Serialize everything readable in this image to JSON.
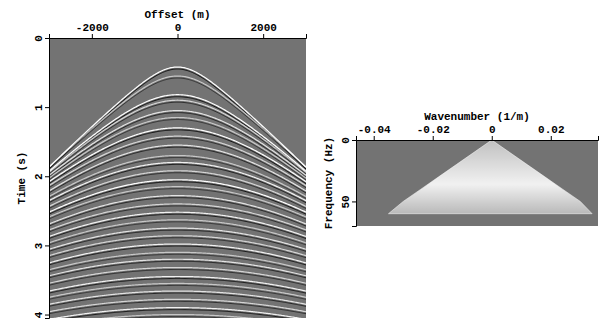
{
  "chart_data": [
    {
      "type": "seismic",
      "xlabel": "Offset (m)",
      "ylabel": "Time (s)",
      "xlim": [
        -3000,
        3000
      ],
      "ylim": [
        0,
        4.05
      ],
      "xticks": [
        -2000,
        0,
        2000
      ],
      "yticks": [
        0,
        1,
        2,
        3,
        4
      ],
      "color": "#ffffff",
      "events": [
        {
          "t0": 0.42,
          "velocity": 1650,
          "amplitude": 1
        },
        {
          "t0": 0.55,
          "velocity": 1680,
          "amplitude": 0.6
        },
        {
          "t0": 0.82,
          "velocity": 1720,
          "amplitude": 1
        },
        {
          "t0": 0.9,
          "velocity": 1740,
          "amplitude": 0.7
        },
        {
          "t0": 1.05,
          "velocity": 1780,
          "amplitude": 0.8
        },
        {
          "t0": 1.15,
          "velocity": 1800,
          "amplitude": 0.6
        },
        {
          "t0": 1.3,
          "velocity": 1850,
          "amplitude": 1
        },
        {
          "t0": 1.42,
          "velocity": 1880,
          "amplitude": 0.7
        },
        {
          "t0": 1.55,
          "velocity": 1900,
          "amplitude": 0.8
        },
        {
          "t0": 1.7,
          "velocity": 1950,
          "amplitude": 0.6
        },
        {
          "t0": 1.8,
          "velocity": 1980,
          "amplitude": 0.9
        },
        {
          "t0": 1.92,
          "velocity": 2000,
          "amplitude": 0.7
        },
        {
          "t0": 2.05,
          "velocity": 2050,
          "amplitude": 1
        },
        {
          "t0": 2.15,
          "velocity": 2080,
          "amplitude": 0.6
        },
        {
          "t0": 2.28,
          "velocity": 2100,
          "amplitude": 0.8
        },
        {
          "t0": 2.4,
          "velocity": 2150,
          "amplitude": 0.7
        },
        {
          "t0": 2.52,
          "velocity": 2180,
          "amplitude": 0.9
        },
        {
          "t0": 2.63,
          "velocity": 2200,
          "amplitude": 0.6
        },
        {
          "t0": 2.75,
          "velocity": 2250,
          "amplitude": 0.8
        },
        {
          "t0": 2.86,
          "velocity": 2280,
          "amplitude": 0.7
        },
        {
          "t0": 2.98,
          "velocity": 2300,
          "amplitude": 0.9
        },
        {
          "t0": 3.1,
          "velocity": 2350,
          "amplitude": 0.6
        },
        {
          "t0": 3.2,
          "velocity": 2380,
          "amplitude": 0.8
        },
        {
          "t0": 3.32,
          "velocity": 2400,
          "amplitude": 0.7
        },
        {
          "t0": 3.45,
          "velocity": 2450,
          "amplitude": 0.9
        },
        {
          "t0": 3.55,
          "velocity": 2480,
          "amplitude": 0.6
        },
        {
          "t0": 3.66,
          "velocity": 2500,
          "amplitude": 0.8
        },
        {
          "t0": 3.78,
          "velocity": 2550,
          "amplitude": 0.7
        },
        {
          "t0": 3.9,
          "velocity": 2580,
          "amplitude": 0.9
        },
        {
          "t0": 4.0,
          "velocity": 2600,
          "amplitude": 0.6
        }
      ]
    },
    {
      "type": "spectrum",
      "xlabel": "Wavenumber (1/m)",
      "ylabel": "Frequency (Hz)",
      "xlim": [
        -0.046,
        0.036
      ],
      "ylim": [
        0,
        70
      ],
      "xticks": [
        -0.04,
        -0.02,
        0,
        0.02
      ],
      "yticks": [
        0,
        50
      ],
      "color": "#ffffff",
      "energy": {
        "frequency": [
          0,
          10,
          20,
          30,
          40,
          50,
          60
        ],
        "k_left": [
          0,
          -0.006,
          -0.012,
          -0.018,
          -0.024,
          -0.03,
          -0.035
        ],
        "k_right": [
          0,
          0.006,
          0.012,
          0.018,
          0.024,
          0.03,
          0.034
        ]
      }
    }
  ]
}
